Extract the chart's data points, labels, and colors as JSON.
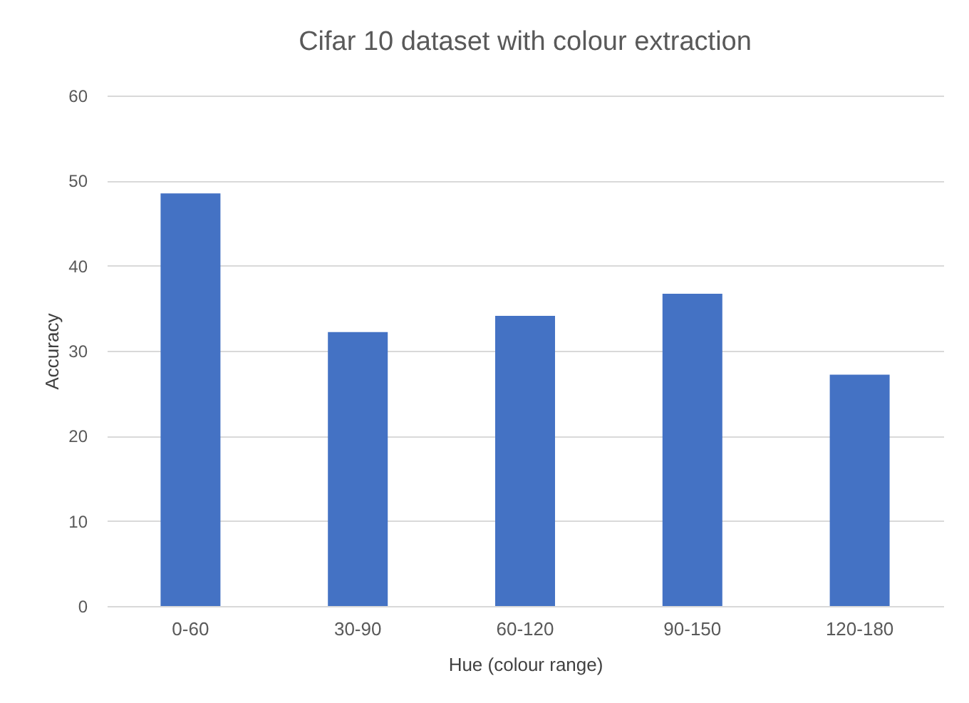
{
  "chart_data": {
    "type": "bar",
    "title": "Cifar 10 dataset with colour extraction",
    "xlabel": "Hue (colour range)",
    "ylabel": "Accuracy",
    "categories": [
      "0-60",
      "30-90",
      "60-120",
      "90-150",
      "120-180"
    ],
    "values": [
      48.5,
      32.2,
      34.1,
      36.7,
      27.2
    ],
    "color": "#4472c4",
    "ylim": [
      0,
      60
    ],
    "yticks": [
      0,
      10,
      20,
      30,
      40,
      50,
      60
    ],
    "grid": "y"
  }
}
